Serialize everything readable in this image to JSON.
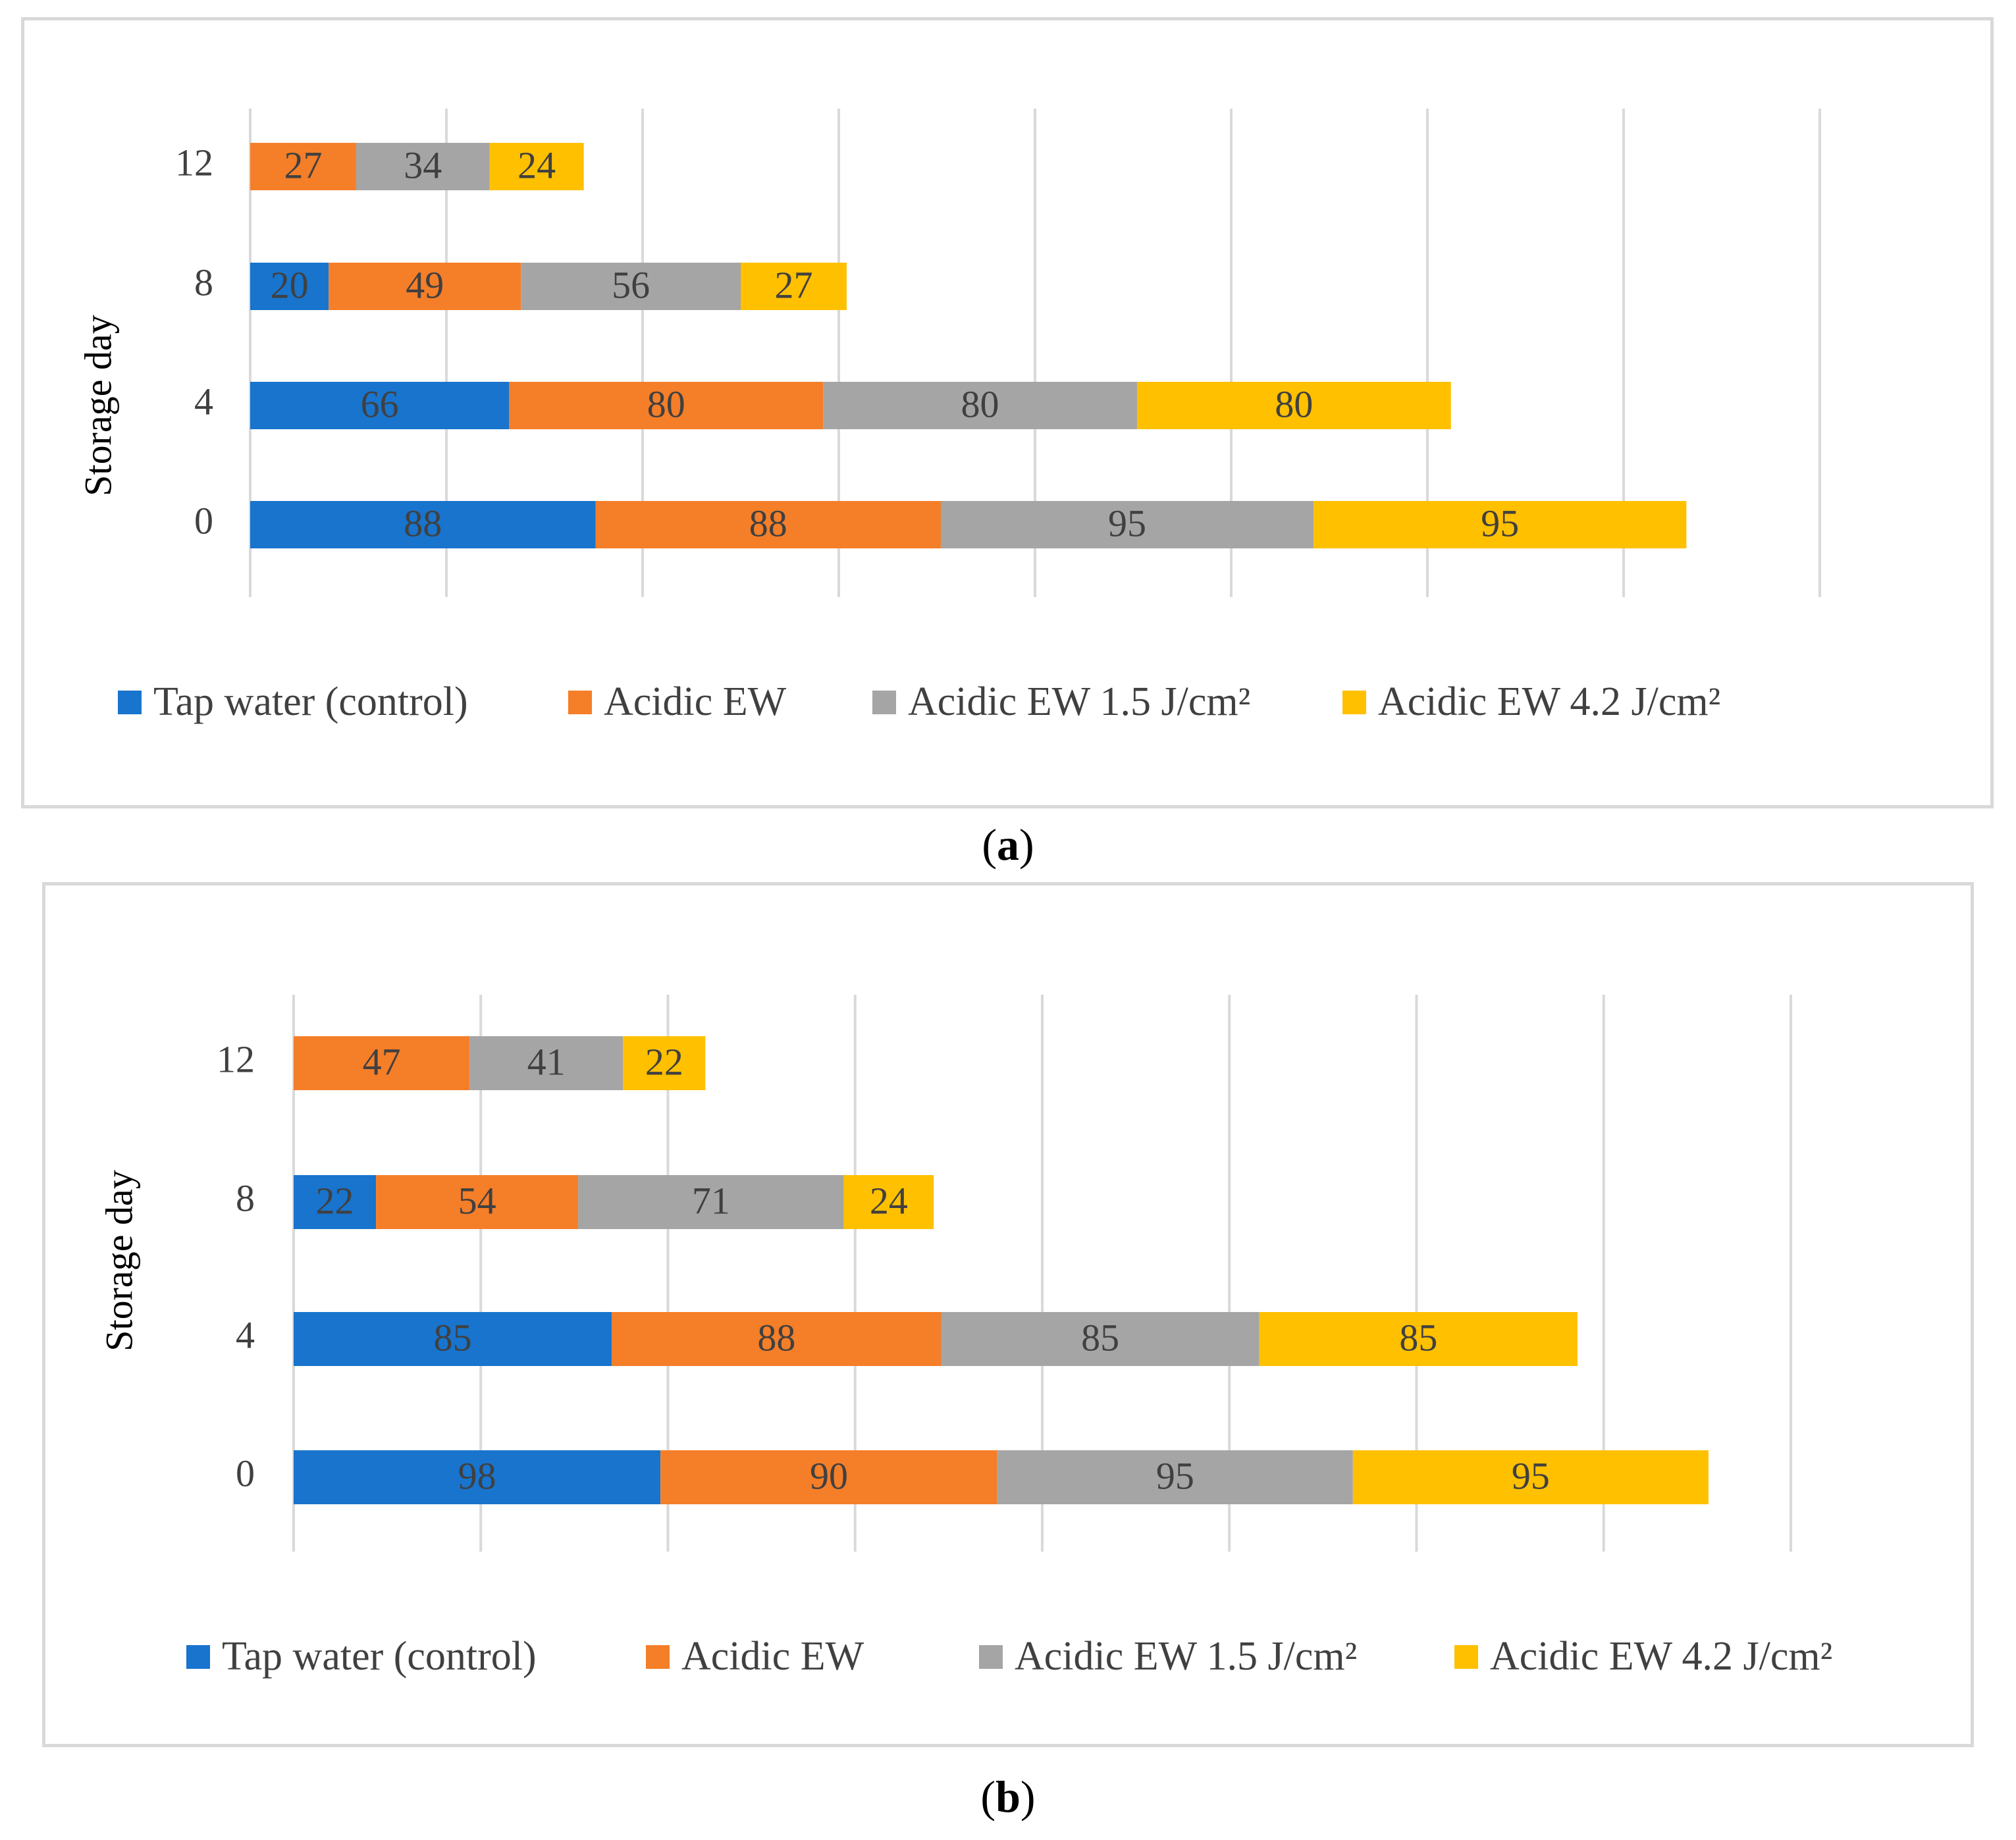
{
  "chart_data": [
    {
      "id": "a",
      "type": "bar",
      "orientation": "horizontal",
      "stacked": true,
      "caption_letter": "a",
      "ylabel": "Storage day",
      "categories": [
        "0",
        "4",
        "8",
        "12"
      ],
      "series": [
        {
          "name": "Tap water (control)",
          "color": "#1874cd",
          "values": [
            88,
            66,
            20,
            0
          ]
        },
        {
          "name": "Acidic EW",
          "color": "#f57e28",
          "values": [
            88,
            80,
            49,
            27
          ]
        },
        {
          "name": "Acidic EW 1.5 J/cm²",
          "color": "#a5a5a5",
          "values": [
            95,
            80,
            56,
            34
          ]
        },
        {
          "name": "Acidic EW 4.2 J/cm²",
          "color": "#ffc000",
          "values": [
            95,
            80,
            27,
            24
          ]
        }
      ],
      "xlim": [
        0,
        400
      ],
      "grid_step": 50,
      "grid": true,
      "legend_position": "bottom"
    },
    {
      "id": "b",
      "type": "bar",
      "orientation": "horizontal",
      "stacked": true,
      "caption_letter": "b",
      "ylabel": "Storage day",
      "categories": [
        "0",
        "4",
        "8",
        "12"
      ],
      "series": [
        {
          "name": "Tap water (control)",
          "color": "#1874cd",
          "values": [
            98,
            85,
            22,
            0
          ]
        },
        {
          "name": "Acidic EW",
          "color": "#f57e28",
          "values": [
            90,
            88,
            54,
            47
          ]
        },
        {
          "name": "Acidic EW 1.5 J/cm²",
          "color": "#a5a5a5",
          "values": [
            95,
            85,
            71,
            41
          ]
        },
        {
          "name": "Acidic EW 4.2 J/cm²",
          "color": "#ffc000",
          "values": [
            95,
            85,
            24,
            22
          ]
        }
      ],
      "xlim": [
        0,
        400
      ],
      "grid_step": 50,
      "grid": true,
      "legend_position": "bottom"
    }
  ]
}
